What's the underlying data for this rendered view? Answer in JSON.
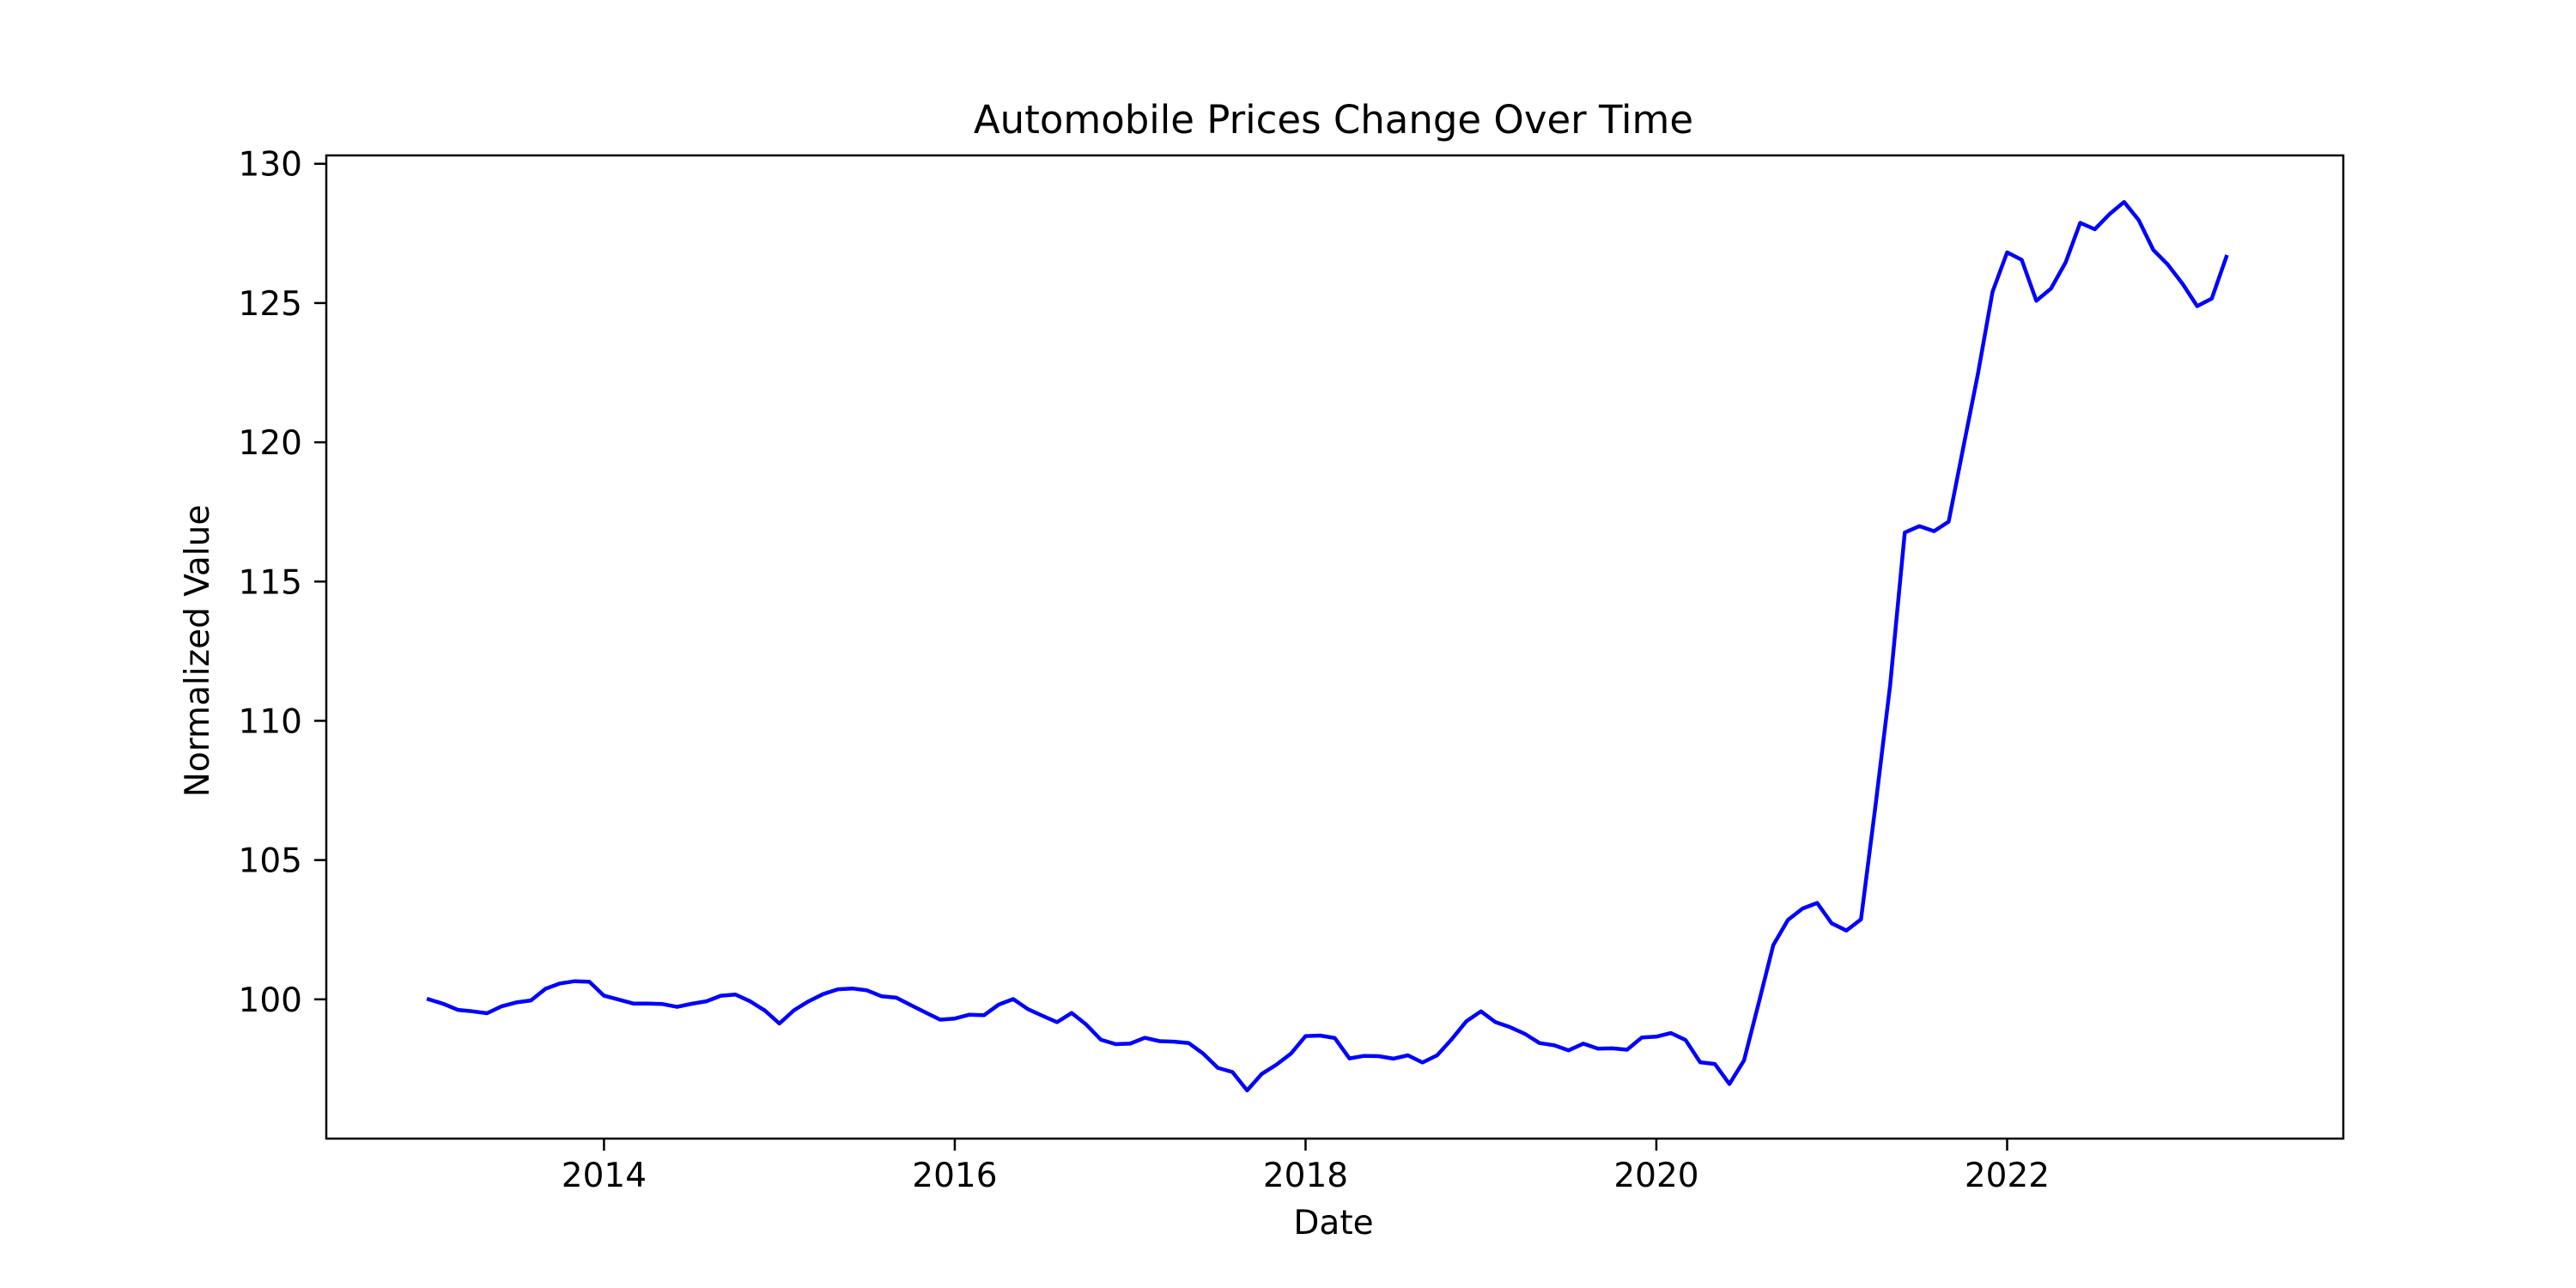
{
  "chart_data": {
    "type": "line",
    "title": "Automobile Prices Change Over Time",
    "xlabel": "Date",
    "ylabel": "Normalized Value",
    "x_ticks": [
      "2014",
      "2016",
      "2018",
      "2020",
      "2022"
    ],
    "y_ticks": [
      "100",
      "105",
      "110",
      "115",
      "120",
      "125",
      "130"
    ],
    "grid": false,
    "legend": "none",
    "xlim": [
      "2012-06",
      "2023-12"
    ],
    "ylim": [
      95,
      130.3
    ],
    "series": [
      {
        "color": "#0000ff",
        "points": [
          [
            "2013-01",
            100.0
          ],
          [
            "2013-02",
            99.84
          ],
          [
            "2013-03",
            99.62
          ],
          [
            "2013-04",
            99.57
          ],
          [
            "2013-05",
            99.5
          ],
          [
            "2013-06",
            99.75
          ],
          [
            "2013-07",
            99.89
          ],
          [
            "2013-08",
            99.96
          ],
          [
            "2013-09",
            100.38
          ],
          [
            "2013-10",
            100.57
          ],
          [
            "2013-11",
            100.65
          ],
          [
            "2013-12",
            100.63
          ],
          [
            "2014-01",
            100.13
          ],
          [
            "2014-02",
            99.99
          ],
          [
            "2014-03",
            99.85
          ],
          [
            "2014-04",
            99.85
          ],
          [
            "2014-05",
            99.83
          ],
          [
            "2014-06",
            99.73
          ],
          [
            "2014-07",
            99.84
          ],
          [
            "2014-08",
            99.93
          ],
          [
            "2014-09",
            100.13
          ],
          [
            "2014-10",
            100.17
          ],
          [
            "2014-11",
            99.93
          ],
          [
            "2014-12",
            99.6
          ],
          [
            "2015-01",
            99.13
          ],
          [
            "2015-02",
            99.61
          ],
          [
            "2015-03",
            99.93
          ],
          [
            "2015-04",
            100.19
          ],
          [
            "2015-05",
            100.36
          ],
          [
            "2015-06",
            100.39
          ],
          [
            "2015-07",
            100.32
          ],
          [
            "2015-08",
            100.11
          ],
          [
            "2015-09",
            100.06
          ],
          [
            "2015-10",
            99.79
          ],
          [
            "2015-11",
            99.53
          ],
          [
            "2015-12",
            99.27
          ],
          [
            "2016-01",
            99.31
          ],
          [
            "2016-02",
            99.45
          ],
          [
            "2016-03",
            99.43
          ],
          [
            "2016-04",
            99.81
          ],
          [
            "2016-05",
            100.01
          ],
          [
            "2016-06",
            99.65
          ],
          [
            "2016-07",
            99.41
          ],
          [
            "2016-08",
            99.18
          ],
          [
            "2016-09",
            99.51
          ],
          [
            "2016-10",
            99.09
          ],
          [
            "2016-11",
            98.55
          ],
          [
            "2016-12",
            98.39
          ],
          [
            "2017-01",
            98.41
          ],
          [
            "2017-02",
            98.62
          ],
          [
            "2017-03",
            98.5
          ],
          [
            "2017-04",
            98.48
          ],
          [
            "2017-05",
            98.43
          ],
          [
            "2017-06",
            98.05
          ],
          [
            "2017-07",
            97.54
          ],
          [
            "2017-08",
            97.39
          ],
          [
            "2017-09",
            96.73
          ],
          [
            "2017-10",
            97.32
          ],
          [
            "2017-11",
            97.65
          ],
          [
            "2017-12",
            98.05
          ],
          [
            "2018-01",
            98.68
          ],
          [
            "2018-02",
            98.7
          ],
          [
            "2018-03",
            98.61
          ],
          [
            "2018-04",
            97.88
          ],
          [
            "2018-05",
            97.97
          ],
          [
            "2018-06",
            97.96
          ],
          [
            "2018-07",
            97.87
          ],
          [
            "2018-08",
            97.99
          ],
          [
            "2018-09",
            97.73
          ],
          [
            "2018-10",
            97.99
          ],
          [
            "2018-11",
            98.57
          ],
          [
            "2018-12",
            99.21
          ],
          [
            "2019-01",
            99.57
          ],
          [
            "2019-02",
            99.18
          ],
          [
            "2019-03",
            99.0
          ],
          [
            "2019-04",
            98.76
          ],
          [
            "2019-05",
            98.43
          ],
          [
            "2019-06",
            98.35
          ],
          [
            "2019-07",
            98.17
          ],
          [
            "2019-08",
            98.41
          ],
          [
            "2019-09",
            98.23
          ],
          [
            "2019-10",
            98.24
          ],
          [
            "2019-11",
            98.19
          ],
          [
            "2019-12",
            98.63
          ],
          [
            "2020-01",
            98.66
          ],
          [
            "2020-02",
            98.79
          ],
          [
            "2020-03",
            98.54
          ],
          [
            "2020-04",
            97.74
          ],
          [
            "2020-05",
            97.68
          ],
          [
            "2020-06",
            96.96
          ],
          [
            "2020-07",
            97.81
          ],
          [
            "2020-08",
            99.86
          ],
          [
            "2020-09",
            101.95
          ],
          [
            "2020-10",
            102.85
          ],
          [
            "2020-11",
            103.26
          ],
          [
            "2020-12",
            103.46
          ],
          [
            "2021-01",
            102.73
          ],
          [
            "2021-02",
            102.47
          ],
          [
            "2021-03",
            102.87
          ],
          [
            "2021-04",
            106.98
          ],
          [
            "2021-05",
            111.29
          ],
          [
            "2021-06",
            116.76
          ],
          [
            "2021-07",
            116.99
          ],
          [
            "2021-08",
            116.81
          ],
          [
            "2021-09",
            117.15
          ],
          [
            "2021-10",
            119.81
          ],
          [
            "2021-11",
            122.46
          ],
          [
            "2021-12",
            125.4
          ],
          [
            "2022-01",
            126.82
          ],
          [
            "2022-02",
            126.55
          ],
          [
            "2022-03",
            125.08
          ],
          [
            "2022-04",
            125.52
          ],
          [
            "2022-05",
            126.46
          ],
          [
            "2022-06",
            127.88
          ],
          [
            "2022-07",
            127.65
          ],
          [
            "2022-08",
            128.19
          ],
          [
            "2022-09",
            128.63
          ],
          [
            "2022-10",
            127.98
          ],
          [
            "2022-11",
            126.91
          ],
          [
            "2022-12",
            126.38
          ],
          [
            "2023-01",
            125.69
          ],
          [
            "2023-02",
            124.89
          ],
          [
            "2023-03",
            125.16
          ],
          [
            "2023-04",
            126.66
          ]
        ]
      }
    ]
  }
}
